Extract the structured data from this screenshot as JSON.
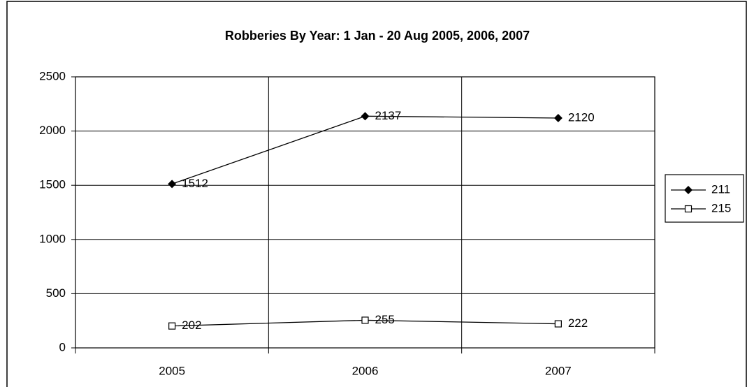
{
  "chart_data": {
    "type": "line",
    "title": "Robberies By Year: 1 Jan - 20 Aug 2005, 2006, 2007",
    "categories": [
      "2005",
      "2006",
      "2007"
    ],
    "series": [
      {
        "name": "211",
        "color": "#000000",
        "marker": "diamond",
        "values": [
          1512,
          2137,
          2120
        ]
      },
      {
        "name": "215",
        "color": "#000000",
        "marker": "square-open",
        "values": [
          202,
          255,
          222
        ]
      }
    ],
    "ylim": [
      0,
      2500
    ],
    "yticks": [
      0,
      500,
      1000,
      1500,
      2000,
      2500
    ],
    "grid": true,
    "legend": "right"
  }
}
